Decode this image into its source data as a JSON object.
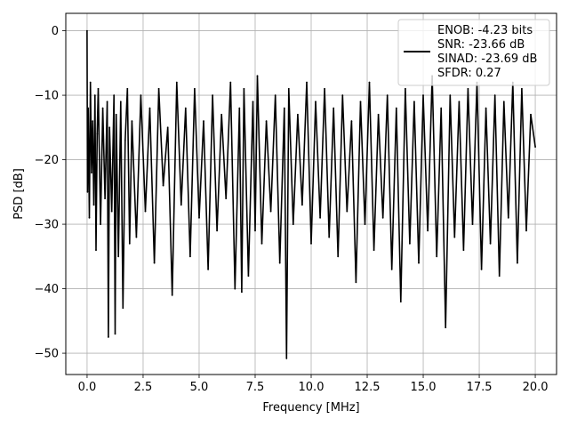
{
  "chart_data": {
    "type": "line",
    "title": "",
    "xlabel": "Frequency [MHz]",
    "ylabel": "PSD [dB]",
    "xlim": [
      -0.95,
      20.95
    ],
    "ylim": [
      -53.3,
      2.7
    ],
    "xticks": [
      0.0,
      2.5,
      5.0,
      7.5,
      10.0,
      12.5,
      15.0,
      17.5,
      20.0
    ],
    "xtick_labels": [
      "0.0",
      "2.5",
      "5.0",
      "7.5",
      "10.0",
      "12.5",
      "15.0",
      "17.5",
      "20.0"
    ],
    "yticks": [
      0,
      -10,
      -20,
      -30,
      -40,
      -50
    ],
    "ytick_labels": [
      "0",
      "−10",
      "−20",
      "−30",
      "−40",
      "−50"
    ],
    "grid": true,
    "legend_position": "top-right",
    "legend_lines": [
      "ENOB: -4.23 bits",
      "SNR: -23.66 dB",
      "SINAD: -23.69 dB",
      "SFDR: 0.27"
    ],
    "series": [
      {
        "color": "#000000",
        "x": [
          0.0,
          0.02,
          0.05,
          0.1,
          0.15,
          0.2,
          0.25,
          0.3,
          0.35,
          0.4,
          0.45,
          0.5,
          0.6,
          0.7,
          0.8,
          0.9,
          0.95,
          1.0,
          1.1,
          1.2,
          1.25,
          1.3,
          1.4,
          1.5,
          1.6,
          1.7,
          1.8,
          1.9,
          2.0,
          2.2,
          2.4,
          2.6,
          2.8,
          3.0,
          3.2,
          3.4,
          3.6,
          3.8,
          4.0,
          4.2,
          4.4,
          4.6,
          4.8,
          5.0,
          5.2,
          5.4,
          5.6,
          5.8,
          6.0,
          6.2,
          6.4,
          6.6,
          6.8,
          6.9,
          7.0,
          7.2,
          7.4,
          7.5,
          7.6,
          7.8,
          8.0,
          8.2,
          8.4,
          8.6,
          8.8,
          8.9,
          9.0,
          9.2,
          9.4,
          9.6,
          9.8,
          10.0,
          10.2,
          10.4,
          10.6,
          10.8,
          11.0,
          11.2,
          11.4,
          11.6,
          11.8,
          12.0,
          12.2,
          12.4,
          12.6,
          12.8,
          13.0,
          13.2,
          13.4,
          13.6,
          13.8,
          14.0,
          14.2,
          14.4,
          14.6,
          14.8,
          15.0,
          15.2,
          15.4,
          15.6,
          15.8,
          16.0,
          16.2,
          16.4,
          16.6,
          16.8,
          17.0,
          17.2,
          17.4,
          17.6,
          17.8,
          18.0,
          18.2,
          18.4,
          18.6,
          18.8,
          19.0,
          19.2,
          19.4,
          19.6,
          19.8,
          20.0
        ],
        "y": [
          0,
          -25,
          -12,
          -29,
          -8,
          -22,
          -14,
          -27,
          -10,
          -34,
          -16,
          -9,
          -30,
          -12,
          -26,
          -11,
          -47.5,
          -15,
          -28,
          -10,
          -47,
          -13,
          -35,
          -11,
          -43,
          -17,
          -9,
          -33,
          -14,
          -32,
          -10,
          -28,
          -12,
          -36,
          -9,
          -24,
          -15,
          -41,
          -8,
          -27,
          -12,
          -35,
          -9,
          -29,
          -14,
          -37,
          -10,
          -31,
          -13,
          -26,
          -8,
          -40,
          -12,
          -40.5,
          -9,
          -38,
          -11,
          -31,
          -7,
          -33,
          -14,
          -28,
          -10,
          -36,
          -12,
          -50.8,
          -9,
          -30,
          -13,
          -27,
          -8,
          -33,
          -11,
          -29,
          -9,
          -32,
          -12,
          -35,
          -10,
          -28,
          -14,
          -39,
          -11,
          -30,
          -8,
          -34,
          -13,
          -29,
          -10,
          -37,
          -12,
          -42,
          -9,
          -33,
          -11,
          -36,
          -10,
          -31,
          -7,
          -35,
          -12,
          -46,
          -10,
          -32,
          -11,
          -34,
          -9,
          -30,
          -8,
          -37,
          -12,
          -33,
          -10,
          -38,
          -11,
          -29,
          -8,
          -36,
          -9,
          -31,
          -13,
          -18
        ]
      }
    ]
  }
}
